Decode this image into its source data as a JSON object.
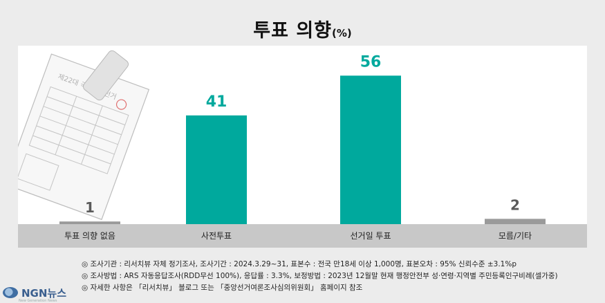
{
  "title": {
    "main": "투표 의향",
    "unit": "(%)"
  },
  "colors": {
    "accent": "#00a99d",
    "neutral_bar": "#9a9a9a",
    "neutral_value": "#5a5a5a",
    "band": "#c8c8c8",
    "panel": "#ffffff",
    "background": "#ececec"
  },
  "chart_data": {
    "type": "bar",
    "categories": [
      "투표 의향 없음",
      "사전투표",
      "선거일 투표",
      "모름/기타"
    ],
    "values": [
      1,
      41,
      56,
      2
    ],
    "highlight": [
      false,
      true,
      true,
      false
    ],
    "ylim": [
      0,
      60
    ],
    "grid": false,
    "legend": "none"
  },
  "illustration": {
    "ballot_heading": "제22대 국회의원선거"
  },
  "notes": [
    "◎ 조사기관 : 리서치뷰 자체 정기조사, 조사기간 : 2024.3.29~31, 표본수 : 전국 만18세 이상 1,000명, 표본오차 : 95% 신뢰수준 ±3.1%p",
    "◎ 조사방법 : ARS 자동응답조사(RDD무선 100%), 응답률 : 3.3%, 보정방법 : 2023년 12월말 현재 행정안전부 성·연령·지역별 주민등록인구비례(셀가중)",
    "◎ 자세한 사항은 「리서치뷰」 블로그 또는 「중앙선거여론조사심의위원회」 홈페이지 참조"
  ],
  "logo": {
    "name": "NGN뉴스",
    "tagline": "New Generation News"
  }
}
